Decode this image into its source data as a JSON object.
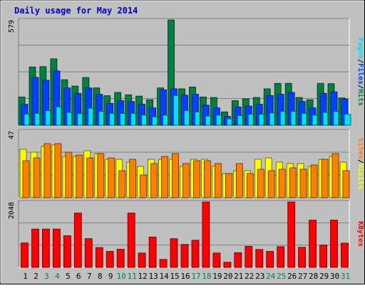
{
  "chart_data": {
    "type": "bar",
    "title": "Daily usage for May 2014",
    "categories": [
      "1",
      "2",
      "3",
      "4",
      "5",
      "6",
      "7",
      "8",
      "9",
      "10",
      "11",
      "12",
      "13",
      "14",
      "15",
      "16",
      "17",
      "18",
      "19",
      "20",
      "21",
      "22",
      "23",
      "24",
      "25",
      "26",
      "27",
      "28",
      "29",
      "30",
      "31"
    ],
    "weekend_days": [
      "3",
      "4",
      "10",
      "11",
      "17",
      "18",
      "24",
      "25",
      "31"
    ],
    "panels": [
      {
        "id": "top",
        "max_label": "579",
        "ymax": 579,
        "legend": [
          "Pages",
          "Files",
          "Hits"
        ],
        "series": [
          {
            "name": "Hits",
            "color": "#008040",
            "values": [
              155,
              320,
              322,
              365,
              250,
              215,
              262,
              205,
              162,
              180,
              167,
              160,
              140,
              205,
              579,
              200,
              210,
              155,
              152,
              73,
              135,
              145,
              152,
              200,
              230,
              230,
              152,
              140,
              230,
              228,
              150
            ]
          },
          {
            "name": "Files",
            "color": "#0040ff",
            "values": [
              115,
              263,
              247,
              298,
              205,
              175,
              205,
              170,
              120,
              135,
              130,
              115,
              95,
              195,
              200,
              165,
              170,
              110,
              95,
              48,
              100,
              105,
              115,
              163,
              170,
              180,
              130,
              95,
              175,
              183,
              143
            ]
          },
          {
            "name": "Pages",
            "color": "#00e0ff",
            "values": [
              60,
              65,
              80,
              100,
              70,
              63,
              93,
              75,
              65,
              65,
              65,
              55,
              45,
              55,
              163,
              80,
              72,
              50,
              55,
              35,
              53,
              60,
              60,
              67,
              75,
              75,
              65,
              55,
              70,
              75,
              60
            ]
          }
        ]
      },
      {
        "id": "middle",
        "max_label": "47",
        "ymax": 47,
        "legend": [
          "Sites",
          "Visits"
        ],
        "series": [
          {
            "name": "Visits",
            "color": "#ffff00",
            "values": [
              34,
              32,
              36,
              37,
              29,
              29,
              33,
              31,
              27,
              27,
              25,
              22,
              27,
              27,
              27,
              22,
              27,
              27,
              22,
              17,
              19,
              19,
              27,
              28,
              25,
              24,
              24,
              22,
              27,
              29,
              25
            ]
          },
          {
            "name": "Sites",
            "color": "#ff8000",
            "values": [
              26,
              28,
              38,
              38,
              32,
              30,
              28,
              31,
              28,
              19,
              27,
              16,
              24,
              29,
              31,
              24,
              26,
              26,
              24,
              17,
              24,
              17,
              20,
              19,
              20,
              21,
              20,
              23,
              27,
              31,
              19
            ]
          }
        ]
      },
      {
        "id": "bottom",
        "max_label": "2048",
        "ymax": 2048,
        "legend": [
          "KBytes"
        ],
        "series": [
          {
            "name": "KBytes",
            "color": "#ff0000",
            "values": [
              765,
              1200,
              1200,
              1200,
              990,
              1700,
              900,
              620,
              500,
              570,
              1700,
              450,
              950,
              250,
              900,
              720,
              850,
              2048,
              450,
              160,
              460,
              660,
              560,
              500,
              650,
              2048,
              630,
              1480,
              700,
              1480,
              760
            ]
          }
        ]
      }
    ],
    "colors": {
      "background": "#c0c0c0",
      "border": "#808080",
      "grid": "#808080",
      "title": "#0000c0",
      "axis_label": "#000000",
      "weekday_label": "#000000",
      "weekend_label": "#00805c"
    }
  }
}
